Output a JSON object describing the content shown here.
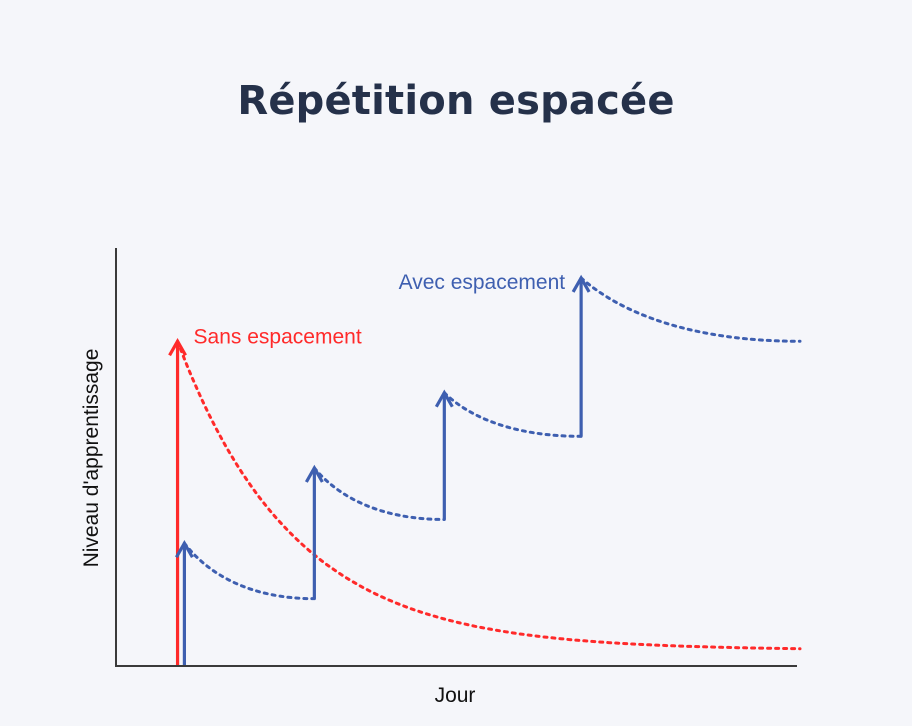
{
  "title": "Répétition espacée",
  "chart_data": {
    "type": "line",
    "title": "Répétition espacée",
    "xlabel": "Jour",
    "ylabel": "Niveau d'apprentissage",
    "xlim": [
      0,
      100
    ],
    "ylim": [
      0,
      100
    ],
    "grid": false,
    "series": [
      {
        "name": "Sans espacement",
        "color": "#ff2a2a",
        "review_points": [
          {
            "x": 9,
            "from": 0,
            "to": 82
          }
        ],
        "decay_points": [
          {
            "x": 9,
            "y": 82
          },
          {
            "x": 20,
            "y": 48
          },
          {
            "x": 40,
            "y": 23
          },
          {
            "x": 60,
            "y": 12
          },
          {
            "x": 80,
            "y": 7
          },
          {
            "x": 100,
            "y": 5
          }
        ]
      },
      {
        "name": "Avec espacement",
        "color": "#3e5fb0",
        "review_points": [
          {
            "x": 10,
            "from": 0,
            "to": 31
          },
          {
            "x": 29,
            "from": 17,
            "to": 50
          },
          {
            "x": 48,
            "from": 37,
            "to": 69
          },
          {
            "x": 68,
            "from": 58,
            "to": 98
          }
        ],
        "decay_points": [
          {
            "x": 10,
            "y": 31
          },
          {
            "x": 29,
            "y": 17
          },
          {
            "x": 29,
            "y": 50
          },
          {
            "x": 48,
            "y": 37
          },
          {
            "x": 48,
            "y": 69
          },
          {
            "x": 68,
            "y": 58
          },
          {
            "x": 68,
            "y": 98
          },
          {
            "x": 100,
            "y": 82
          }
        ]
      }
    ],
    "annotations": [
      {
        "series": 0,
        "text": "Sans espacement",
        "color": "#ff2a2a"
      },
      {
        "series": 1,
        "text": "Avec espacement",
        "color": "#3e5fb0"
      }
    ]
  }
}
